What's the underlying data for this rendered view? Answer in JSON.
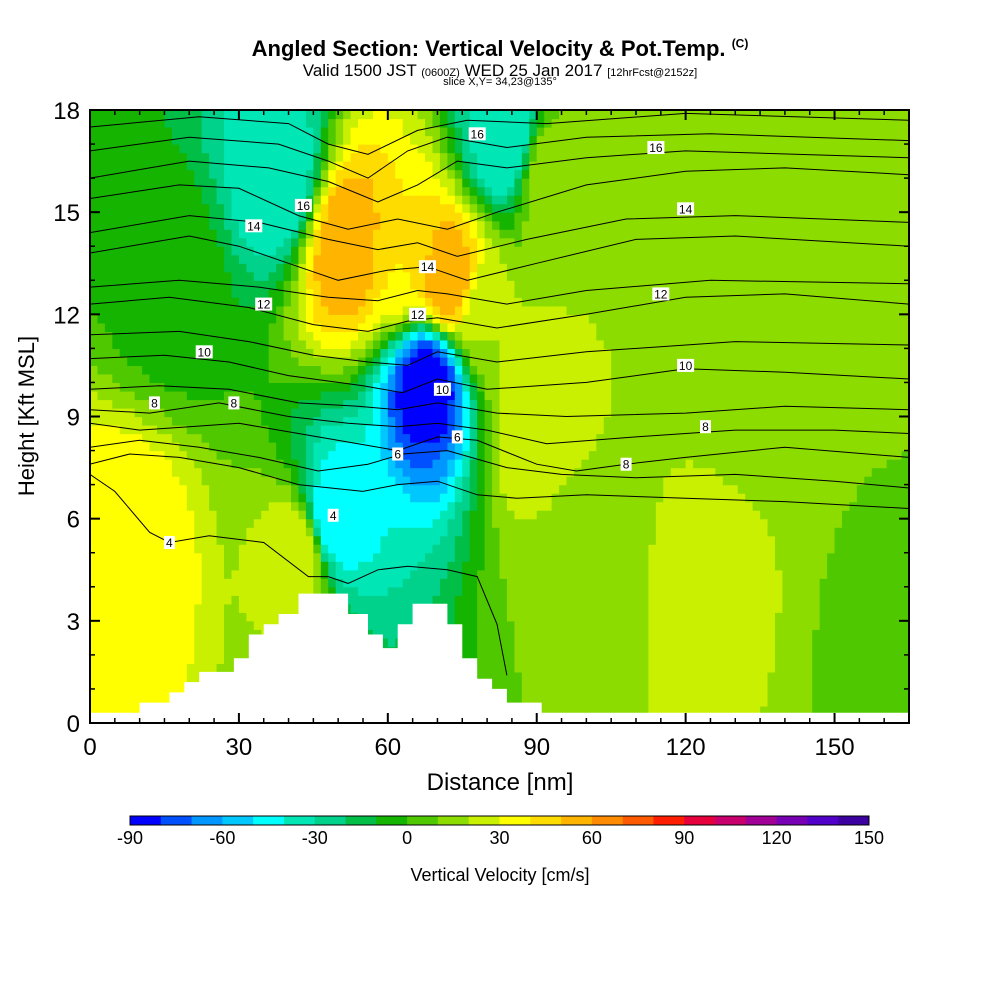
{
  "header": {
    "title": "Angled Section: Vertical Velocity & Pot.Temp.",
    "title_sup": "(C)",
    "valid_a": "Valid 1500 JST",
    "valid_small1": "(0600Z)",
    "valid_b": "WED 25 Jan 2017",
    "valid_small2": "[12hrFcst@2152z]",
    "slice": "slice X,Y= 34,23@135°"
  },
  "chart_data": {
    "type": "heatmap",
    "xlabel": "Distance [nm]",
    "ylabel": "Height [Kft MSL]",
    "xlim": [
      0,
      165
    ],
    "ylim": [
      0,
      18
    ],
    "xticks": [
      0,
      30,
      60,
      90,
      120,
      150
    ],
    "yticks": [
      0,
      3,
      6,
      9,
      12,
      15,
      18
    ],
    "colorbar": {
      "label": "Vertical Velocity [cm/s]",
      "ticks": [
        "-90",
        "-60",
        "-30",
        "0",
        "30",
        "60",
        "90",
        "120",
        "150"
      ],
      "min": -90,
      "max": 150,
      "step": 10,
      "colors": [
        "#0000ff",
        "#0050ff",
        "#0096ff",
        "#00c8ff",
        "#00ffff",
        "#00e6b4",
        "#00d28c",
        "#00be46",
        "#14b400",
        "#50c800",
        "#8cdc00",
        "#c8f000",
        "#ffff00",
        "#ffdc00",
        "#ffb400",
        "#ff8c00",
        "#ff5a00",
        "#ff1e00",
        "#e6003c",
        "#c8006e",
        "#a00096",
        "#7800b4",
        "#5000c8",
        "#3c00a0"
      ]
    },
    "velocity_features": [
      {
        "x": 7,
        "y": 5,
        "value": 40
      },
      {
        "x": 17,
        "y": 13,
        "value": -5
      },
      {
        "x": 38,
        "y": 16,
        "value": -40
      },
      {
        "x": 42,
        "y": 5,
        "value": 30
      },
      {
        "x": 52,
        "y": 14,
        "value": 60
      },
      {
        "x": 49,
        "y": 6,
        "value": -50
      },
      {
        "x": 63,
        "y": 13.5,
        "value": 40
      },
      {
        "x": 68,
        "y": 10,
        "value": -90
      },
      {
        "x": 72,
        "y": 13,
        "value": 60
      },
      {
        "x": 80,
        "y": 12,
        "value": 20
      },
      {
        "x": 84,
        "y": 17,
        "value": -40
      },
      {
        "x": 90,
        "y": 9,
        "value": 30
      },
      {
        "x": 92,
        "y": 16,
        "value": 20
      },
      {
        "x": 101,
        "y": 5,
        "value": 12
      },
      {
        "x": 123,
        "y": 4,
        "value": 25
      },
      {
        "x": 125,
        "y": 15,
        "value": 12
      },
      {
        "x": 135,
        "y": 11,
        "value": 10
      },
      {
        "x": 160,
        "y": 2,
        "value": 8
      },
      {
        "x": 150,
        "y": 16,
        "value": 14
      }
    ],
    "theta_contours": [
      {
        "value": 4,
        "label": true,
        "points": [
          [
            0,
            7.3
          ],
          [
            5,
            6.8
          ],
          [
            12,
            5.6
          ],
          [
            16,
            5.3
          ],
          [
            24,
            5.5
          ],
          [
            35,
            5.3
          ],
          [
            44,
            4.3
          ],
          [
            48,
            4.3
          ],
          [
            52,
            4.1
          ],
          [
            58,
            4.5
          ],
          [
            64,
            4.6
          ],
          [
            72,
            4.5
          ],
          [
            78,
            4.3
          ],
          [
            82,
            2.9
          ],
          [
            84,
            1.4
          ]
        ]
      },
      {
        "value": 6,
        "label": false,
        "points": [
          [
            0,
            7.6
          ],
          [
            8,
            7.9
          ],
          [
            18,
            7.8
          ],
          [
            30,
            7.5
          ],
          [
            42,
            7.0
          ],
          [
            55,
            6.8
          ],
          [
            62,
            7.0
          ],
          [
            70,
            7.1
          ],
          [
            78,
            6.7
          ],
          [
            86,
            6.6
          ],
          [
            100,
            6.7
          ],
          [
            120,
            6.6
          ],
          [
            140,
            6.5
          ],
          [
            165,
            6.3
          ]
        ]
      },
      {
        "value": 7,
        "label": false,
        "points": [
          [
            0,
            8.1
          ],
          [
            10,
            8.3
          ],
          [
            22,
            8.1
          ],
          [
            34,
            7.8
          ],
          [
            46,
            7.4
          ],
          [
            56,
            7.6
          ],
          [
            63,
            7.9
          ],
          [
            72,
            8.0
          ],
          [
            84,
            7.5
          ],
          [
            95,
            7.3
          ],
          [
            110,
            7.2
          ],
          [
            130,
            7.3
          ],
          [
            150,
            7.1
          ],
          [
            165,
            6.9
          ]
        ]
      },
      {
        "value": 8,
        "label": true,
        "points": [
          [
            0,
            8.8
          ],
          [
            10,
            8.6
          ],
          [
            20,
            8.7
          ],
          [
            30,
            8.8
          ],
          [
            42,
            8.5
          ],
          [
            54,
            8.2
          ],
          [
            62,
            8.0
          ],
          [
            70,
            8.4
          ],
          [
            78,
            8.3
          ],
          [
            90,
            7.6
          ],
          [
            98,
            7.4
          ],
          [
            108,
            7.6
          ],
          [
            120,
            7.8
          ],
          [
            140,
            8.1
          ],
          [
            165,
            7.8
          ]
        ]
      },
      {
        "value": 8.5,
        "label": false,
        "points": [
          [
            0,
            9.2
          ],
          [
            12,
            9.1
          ],
          [
            26,
            9.4
          ],
          [
            40,
            9.0
          ],
          [
            52,
            8.8
          ],
          [
            62,
            8.7
          ],
          [
            70,
            8.8
          ],
          [
            80,
            8.6
          ],
          [
            92,
            8.2
          ],
          [
            110,
            8.4
          ],
          [
            130,
            8.6
          ],
          [
            150,
            8.6
          ],
          [
            165,
            8.5
          ]
        ]
      },
      {
        "value": 9,
        "label": false,
        "points": [
          [
            0,
            9.8
          ],
          [
            14,
            9.9
          ],
          [
            28,
            9.8
          ],
          [
            42,
            9.4
          ],
          [
            54,
            9.3
          ],
          [
            62,
            9.2
          ],
          [
            70,
            9.4
          ],
          [
            82,
            9.1
          ],
          [
            96,
            9.0
          ],
          [
            120,
            9.1
          ],
          [
            140,
            9.3
          ],
          [
            165,
            9.2
          ]
        ]
      },
      {
        "value": 10,
        "label": true,
        "points": [
          [
            0,
            10.7
          ],
          [
            15,
            10.8
          ],
          [
            28,
            10.6
          ],
          [
            40,
            10.2
          ],
          [
            55,
            9.9
          ],
          [
            63,
            9.7
          ],
          [
            70,
            10.1
          ],
          [
            80,
            9.8
          ],
          [
            100,
            10.0
          ],
          [
            120,
            10.4
          ],
          [
            140,
            10.3
          ],
          [
            165,
            10.1
          ]
        ]
      },
      {
        "value": 11,
        "label": false,
        "points": [
          [
            0,
            11.4
          ],
          [
            18,
            11.5
          ],
          [
            32,
            11.2
          ],
          [
            45,
            10.8
          ],
          [
            56,
            10.6
          ],
          [
            64,
            10.5
          ],
          [
            70,
            10.9
          ],
          [
            82,
            10.6
          ],
          [
            100,
            10.9
          ],
          [
            130,
            11.2
          ],
          [
            165,
            11.1
          ]
        ]
      },
      {
        "value": 12,
        "label": true,
        "points": [
          [
            0,
            12.3
          ],
          [
            16,
            12.5
          ],
          [
            32,
            12.2
          ],
          [
            45,
            11.7
          ],
          [
            56,
            11.5
          ],
          [
            64,
            11.8
          ],
          [
            70,
            11.9
          ],
          [
            82,
            11.6
          ],
          [
            100,
            12.0
          ],
          [
            120,
            12.5
          ],
          [
            140,
            12.6
          ],
          [
            165,
            12.3
          ]
        ]
      },
      {
        "value": 12.8,
        "label": false,
        "points": [
          [
            0,
            12.8
          ],
          [
            18,
            13.0
          ],
          [
            34,
            12.8
          ],
          [
            48,
            12.5
          ],
          [
            58,
            12.4
          ],
          [
            66,
            12.7
          ],
          [
            72,
            12.6
          ],
          [
            84,
            12.3
          ],
          [
            100,
            12.7
          ],
          [
            125,
            13.0
          ],
          [
            165,
            12.9
          ]
        ]
      },
      {
        "value": 14,
        "label": true,
        "points": [
          [
            0,
            13.8
          ],
          [
            20,
            14.3
          ],
          [
            30,
            14.0
          ],
          [
            40,
            13.5
          ],
          [
            50,
            13.0
          ],
          [
            60,
            13.3
          ],
          [
            68,
            13.4
          ],
          [
            76,
            13.0
          ],
          [
            90,
            13.5
          ],
          [
            110,
            14.2
          ],
          [
            130,
            14.3
          ],
          [
            165,
            14.0
          ]
        ]
      },
      {
        "value": 15,
        "label": false,
        "points": [
          [
            0,
            14.4
          ],
          [
            20,
            14.9
          ],
          [
            34,
            14.7
          ],
          [
            48,
            14.2
          ],
          [
            58,
            13.9
          ],
          [
            66,
            14.1
          ],
          [
            74,
            13.7
          ],
          [
            88,
            14.2
          ],
          [
            108,
            14.8
          ],
          [
            130,
            14.9
          ],
          [
            165,
            14.7
          ]
        ]
      },
      {
        "value": 16,
        "label": true,
        "points": [
          [
            0,
            15.4
          ],
          [
            18,
            15.8
          ],
          [
            30,
            15.7
          ],
          [
            42,
            14.9
          ],
          [
            52,
            14.5
          ],
          [
            62,
            14.8
          ],
          [
            72,
            14.5
          ],
          [
            82,
            15.0
          ],
          [
            100,
            15.8
          ],
          [
            120,
            16.2
          ],
          [
            140,
            16.3
          ],
          [
            165,
            16.1
          ]
        ]
      },
      {
        "value": 16.5,
        "label": false,
        "points": [
          [
            0,
            16.0
          ],
          [
            20,
            16.5
          ],
          [
            36,
            16.3
          ],
          [
            48,
            15.9
          ],
          [
            58,
            15.3
          ],
          [
            66,
            15.8
          ],
          [
            74,
            16.5
          ],
          [
            84,
            16.3
          ],
          [
            100,
            16.6
          ],
          [
            120,
            16.8
          ],
          [
            165,
            16.6
          ]
        ]
      },
      {
        "value": 17,
        "label": false,
        "points": [
          [
            0,
            16.8
          ],
          [
            20,
            17.2
          ],
          [
            38,
            17.0
          ],
          [
            48,
            16.5
          ],
          [
            56,
            16.0
          ],
          [
            64,
            16.8
          ],
          [
            72,
            17.2
          ],
          [
            84,
            16.9
          ],
          [
            100,
            17.2
          ],
          [
            125,
            17.3
          ],
          [
            165,
            17.1
          ]
        ]
      },
      {
        "value": 17.5,
        "label": false,
        "points": [
          [
            0,
            17.5
          ],
          [
            22,
            17.8
          ],
          [
            40,
            17.6
          ],
          [
            48,
            17.0
          ],
          [
            56,
            16.7
          ],
          [
            66,
            17.4
          ],
          [
            76,
            17.7
          ],
          [
            92,
            17.6
          ],
          [
            120,
            17.9
          ],
          [
            165,
            17.7
          ]
        ]
      }
    ],
    "contour_labels": [
      {
        "text": "4",
        "x": 16,
        "y": 5.3
      },
      {
        "text": "4",
        "x": 49,
        "y": 6.1
      },
      {
        "text": "6",
        "x": 62,
        "y": 7.9
      },
      {
        "text": "6",
        "x": 74,
        "y": 8.4
      },
      {
        "text": "8",
        "x": 13,
        "y": 9.4
      },
      {
        "text": "8",
        "x": 29,
        "y": 9.4
      },
      {
        "text": "8",
        "x": 108,
        "y": 7.6
      },
      {
        "text": "8",
        "x": 124,
        "y": 8.7
      },
      {
        "text": "10",
        "x": 23,
        "y": 10.9
      },
      {
        "text": "10",
        "x": 71,
        "y": 9.8
      },
      {
        "text": "10",
        "x": 120,
        "y": 10.5
      },
      {
        "text": "12",
        "x": 35,
        "y": 12.3
      },
      {
        "text": "12",
        "x": 66,
        "y": 12.0
      },
      {
        "text": "12",
        "x": 115,
        "y": 12.6
      },
      {
        "text": "14",
        "x": 33,
        "y": 14.6
      },
      {
        "text": "14",
        "x": 68,
        "y": 13.4
      },
      {
        "text": "14",
        "x": 120,
        "y": 15.1
      },
      {
        "text": "16",
        "x": 43,
        "y": 15.2
      },
      {
        "text": "16",
        "x": 78,
        "y": 17.3
      },
      {
        "text": "16",
        "x": 114,
        "y": 16.9
      }
    ],
    "terrain": [
      [
        0,
        0.3
      ],
      [
        10,
        0.3
      ],
      [
        10,
        0.6
      ],
      [
        16,
        0.6
      ],
      [
        16,
        0.9
      ],
      [
        19,
        0.9
      ],
      [
        19,
        1.2
      ],
      [
        22,
        1.2
      ],
      [
        22,
        1.5
      ],
      [
        29,
        1.5
      ],
      [
        29,
        1.9
      ],
      [
        32,
        1.9
      ],
      [
        32,
        2.6
      ],
      [
        35,
        2.6
      ],
      [
        35,
        2.9
      ],
      [
        38,
        2.9
      ],
      [
        38,
        3.2
      ],
      [
        42,
        3.2
      ],
      [
        42,
        3.8
      ],
      [
        52,
        3.8
      ],
      [
        52,
        3.2
      ],
      [
        56,
        3.2
      ],
      [
        56,
        2.6
      ],
      [
        59,
        2.6
      ],
      [
        59,
        2.2
      ],
      [
        62,
        2.2
      ],
      [
        62,
        2.9
      ],
      [
        65,
        2.9
      ],
      [
        65,
        3.5
      ],
      [
        72,
        3.5
      ],
      [
        72,
        2.9
      ],
      [
        75,
        2.9
      ],
      [
        75,
        1.9
      ],
      [
        78,
        1.9
      ],
      [
        78,
        1.3
      ],
      [
        81,
        1.3
      ],
      [
        81,
        1.0
      ],
      [
        84,
        1.0
      ],
      [
        84,
        0.6
      ],
      [
        91,
        0.6
      ],
      [
        91,
        0.3
      ],
      [
        165,
        0.3
      ]
    ]
  }
}
